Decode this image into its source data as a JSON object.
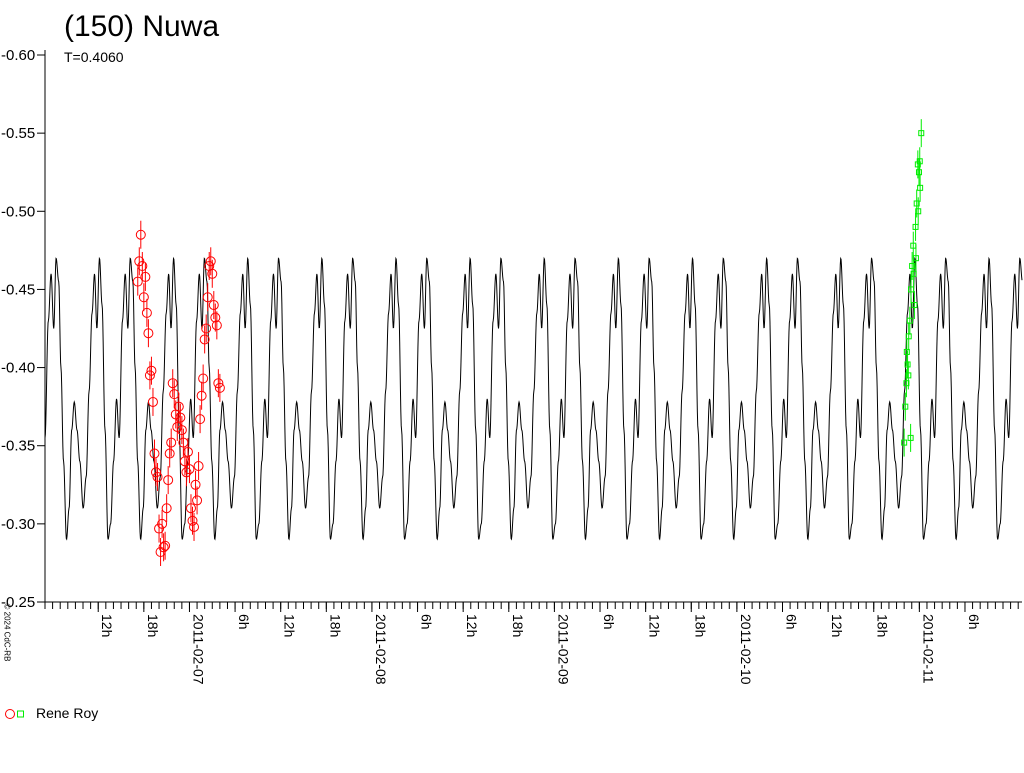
{
  "header": {
    "title": "(150) Nuwa",
    "subtitle": "T=0.4060",
    "copyright": "© 2024 CdC-RB"
  },
  "legend": {
    "label": "Rene Roy"
  },
  "colors": {
    "model": "#000000",
    "series1": "#ff0000",
    "series2": "#00ee00"
  },
  "chart_data": {
    "type": "line",
    "title": "(150) Nuwa",
    "subtitle": "T=0.4060",
    "ylim": [
      -0.6,
      -0.25
    ],
    "y_inverted": true,
    "y_ticks": [
      "-0.60",
      "-0.55",
      "-0.50",
      "-0.45",
      "-0.40",
      "-0.35",
      "-0.30",
      "-0.25"
    ],
    "x_range_hours": [
      0,
      128.5
    ],
    "x_origin": "2011-02-06 05:00",
    "x_ticks": [
      {
        "h": 7,
        "label": "12h"
      },
      {
        "h": 13,
        "label": "18h"
      },
      {
        "h": 19,
        "label": "2011-02-07"
      },
      {
        "h": 25,
        "label": "6h"
      },
      {
        "h": 31,
        "label": "12h"
      },
      {
        "h": 37,
        "label": "18h"
      },
      {
        "h": 43,
        "label": "2011-02-08"
      },
      {
        "h": 49,
        "label": "6h"
      },
      {
        "h": 55,
        "label": "12h"
      },
      {
        "h": 61,
        "label": "18h"
      },
      {
        "h": 67,
        "label": "2011-02-09"
      },
      {
        "h": 73,
        "label": "6h"
      },
      {
        "h": 79,
        "label": "12h"
      },
      {
        "h": 85,
        "label": "18h"
      },
      {
        "h": 91,
        "label": "2011-02-10"
      },
      {
        "h": 97,
        "label": "6h"
      },
      {
        "h": 103,
        "label": "12h"
      },
      {
        "h": 109,
        "label": "18h"
      },
      {
        "h": 115,
        "label": "2011-02-11"
      },
      {
        "h": 121,
        "label": "6h"
      }
    ],
    "model_curve": {
      "name": "",
      "period_hours": 9.75,
      "points": [
        {
          "phase": 0.0,
          "mag": -0.355
        },
        {
          "phase": 0.045,
          "mag": -0.43
        },
        {
          "phase": 0.082,
          "mag": -0.46
        },
        {
          "phase": 0.118,
          "mag": -0.425
        },
        {
          "phase": 0.15,
          "mag": -0.47
        },
        {
          "phase": 0.185,
          "mag": -0.455
        },
        {
          "phase": 0.215,
          "mag": -0.4
        },
        {
          "phase": 0.25,
          "mag": -0.34
        },
        {
          "phase": 0.29,
          "mag": -0.29
        },
        {
          "phase": 0.325,
          "mag": -0.31
        },
        {
          "phase": 0.36,
          "mag": -0.36
        },
        {
          "phase": 0.395,
          "mag": -0.378
        },
        {
          "phase": 0.432,
          "mag": -0.36
        },
        {
          "phase": 0.47,
          "mag": -0.34
        },
        {
          "phase": 0.515,
          "mag": -0.31
        },
        {
          "phase": 0.555,
          "mag": -0.33
        },
        {
          "phase": 0.595,
          "mag": -0.385
        },
        {
          "phase": 0.635,
          "mag": -0.435
        },
        {
          "phase": 0.668,
          "mag": -0.46
        },
        {
          "phase": 0.7,
          "mag": -0.425
        },
        {
          "phase": 0.735,
          "mag": -0.47
        },
        {
          "phase": 0.77,
          "mag": -0.44
        },
        {
          "phase": 0.81,
          "mag": -0.36
        },
        {
          "phase": 0.85,
          "mag": -0.29
        },
        {
          "phase": 0.885,
          "mag": -0.3
        },
        {
          "phase": 0.925,
          "mag": -0.34
        },
        {
          "phase": 0.965,
          "mag": -0.38
        },
        {
          "phase": 1.0,
          "mag": -0.355
        }
      ]
    },
    "series": [
      {
        "name": "Rene Roy",
        "marker": "circle",
        "color": "#ff0000",
        "points": [
          [
            12.2,
            -0.455
          ],
          [
            12.4,
            -0.468
          ],
          [
            12.6,
            -0.485
          ],
          [
            12.8,
            -0.465
          ],
          [
            13.0,
            -0.445
          ],
          [
            13.2,
            -0.458
          ],
          [
            13.4,
            -0.435
          ],
          [
            13.6,
            -0.422
          ],
          [
            13.8,
            -0.395
          ],
          [
            14.0,
            -0.398
          ],
          [
            14.2,
            -0.378
          ],
          [
            14.4,
            -0.345
          ],
          [
            14.6,
            -0.333
          ],
          [
            14.8,
            -0.33
          ],
          [
            15.0,
            -0.297
          ],
          [
            15.2,
            -0.282
          ],
          [
            15.4,
            -0.3
          ],
          [
            15.6,
            -0.285
          ],
          [
            15.8,
            -0.286
          ],
          [
            16.0,
            -0.31
          ],
          [
            16.2,
            -0.328
          ],
          [
            16.4,
            -0.345
          ],
          [
            16.6,
            -0.352
          ],
          [
            16.8,
            -0.39
          ],
          [
            17.0,
            -0.383
          ],
          [
            17.2,
            -0.37
          ],
          [
            17.4,
            -0.362
          ],
          [
            17.6,
            -0.375
          ],
          [
            17.8,
            -0.368
          ],
          [
            18.0,
            -0.36
          ],
          [
            18.2,
            -0.352
          ],
          [
            18.4,
            -0.34
          ],
          [
            18.6,
            -0.333
          ],
          [
            18.8,
            -0.346
          ],
          [
            19.0,
            -0.335
          ],
          [
            19.2,
            -0.31
          ],
          [
            19.4,
            -0.302
          ],
          [
            19.6,
            -0.298
          ],
          [
            19.8,
            -0.325
          ],
          [
            20.0,
            -0.315
          ],
          [
            20.2,
            -0.337
          ],
          [
            20.4,
            -0.367
          ],
          [
            20.6,
            -0.382
          ],
          [
            20.8,
            -0.393
          ],
          [
            21.0,
            -0.418
          ],
          [
            21.2,
            -0.425
          ],
          [
            21.4,
            -0.445
          ],
          [
            21.6,
            -0.465
          ],
          [
            21.8,
            -0.468
          ],
          [
            22.0,
            -0.46
          ],
          [
            22.2,
            -0.44
          ],
          [
            22.4,
            -0.432
          ],
          [
            22.6,
            -0.427
          ],
          [
            22.8,
            -0.39
          ],
          [
            23.0,
            -0.387
          ]
        ]
      },
      {
        "name": "",
        "marker": "square",
        "color": "#00ee00",
        "points": [
          [
            113.0,
            -0.352
          ],
          [
            113.15,
            -0.375
          ],
          [
            113.3,
            -0.39
          ],
          [
            113.45,
            -0.402
          ],
          [
            113.6,
            -0.42
          ],
          [
            113.75,
            -0.43
          ],
          [
            113.9,
            -0.45
          ],
          [
            114.05,
            -0.465
          ],
          [
            114.2,
            -0.478
          ],
          [
            114.35,
            -0.44
          ],
          [
            114.5,
            -0.49
          ],
          [
            114.65,
            -0.505
          ],
          [
            114.8,
            -0.53
          ],
          [
            114.95,
            -0.525
          ],
          [
            115.1,
            -0.515
          ],
          [
            115.25,
            -0.55
          ],
          [
            113.35,
            -0.41
          ],
          [
            113.55,
            -0.395
          ],
          [
            113.85,
            -0.355
          ],
          [
            114.25,
            -0.46
          ],
          [
            114.55,
            -0.47
          ],
          [
            114.85,
            -0.5
          ],
          [
            115.05,
            -0.532
          ]
        ]
      }
    ]
  }
}
